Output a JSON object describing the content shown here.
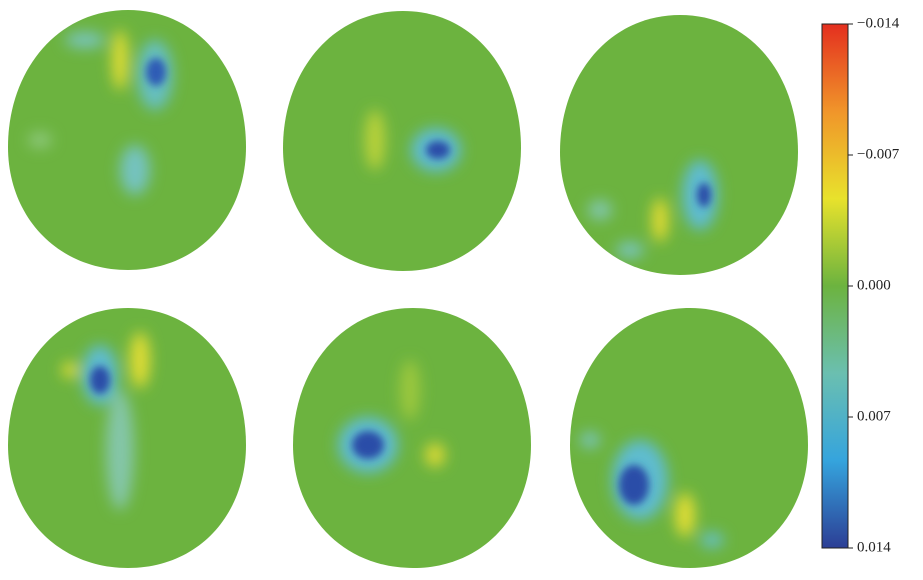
{
  "chart_data": {
    "type": "colorbar",
    "colormap": [
      "#2c3e95",
      "#35a4dd",
      "#6bbfb0",
      "#6cb33f",
      "#e8e22c",
      "#f0952a",
      "#e42f1f"
    ],
    "colorbar_reversed": true,
    "clim": [
      -0.014,
      0.014
    ],
    "cticks": [
      {
        "value": -0.014,
        "label": "−0.014"
      },
      {
        "value": -0.007,
        "label": "−0.007"
      },
      {
        "value": 0.0,
        "label": "0.000"
      },
      {
        "value": 0.007,
        "label": "0.007"
      },
      {
        "value": 0.014,
        "label": "0.014"
      }
    ]
  }
}
